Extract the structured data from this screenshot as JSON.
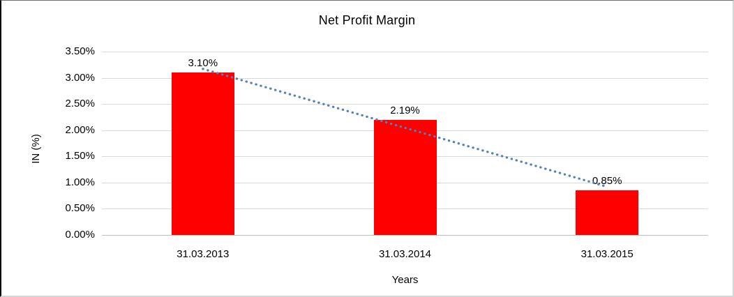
{
  "chart_data": {
    "type": "bar",
    "title": "Net Profit Margin",
    "xlabel": "Years",
    "ylabel": "IN (%)",
    "categories": [
      "31.03.2013",
      "31.03.2014",
      "31.03.2015"
    ],
    "values": [
      3.1,
      2.19,
      0.85
    ],
    "data_labels": [
      "3.10%",
      "2.19%",
      "0.85%"
    ],
    "ylim": [
      0,
      3.5
    ],
    "ytick_step": 0.5,
    "ytick_labels": [
      "0.00%",
      "0.50%",
      "1.00%",
      "1.50%",
      "2.00%",
      "2.50%",
      "3.00%",
      "3.50%"
    ],
    "grid": true,
    "legend": false,
    "colors": {
      "bar": "#FF0000",
      "trendline": "#4F81BD",
      "gridline": "#D9D9D9",
      "axis_line": "#BFBFBF",
      "text": "#000000",
      "background": "#FFFFFF"
    },
    "trendline": {
      "type": "linear",
      "style": "dotted",
      "start_value": 3.17,
      "end_value": 0.92
    }
  }
}
